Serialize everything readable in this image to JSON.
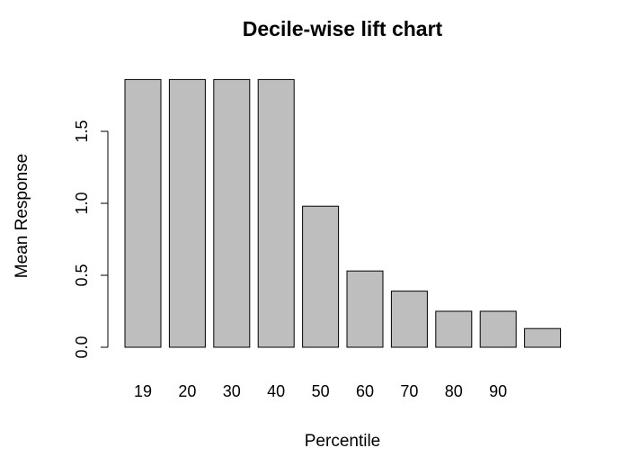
{
  "chart_data": {
    "type": "bar",
    "title": "Decile-wise lift chart",
    "xlabel": "Percentile",
    "ylabel": "Mean Response",
    "categories": [
      "19",
      "20",
      "30",
      "40",
      "50",
      "60",
      "70",
      "80",
      "90",
      ""
    ],
    "values": [
      1.86,
      1.86,
      1.86,
      1.86,
      0.98,
      0.53,
      0.39,
      0.25,
      0.25,
      0.13
    ],
    "yticks": [
      0.0,
      0.5,
      1.0,
      1.5
    ],
    "ytick_labels": [
      "0.0",
      "0.5",
      "1.0",
      "1.5"
    ],
    "ylim": [
      0,
      1.9
    ],
    "bar_color": "#bebebe",
    "grid": false,
    "legend": "none"
  }
}
